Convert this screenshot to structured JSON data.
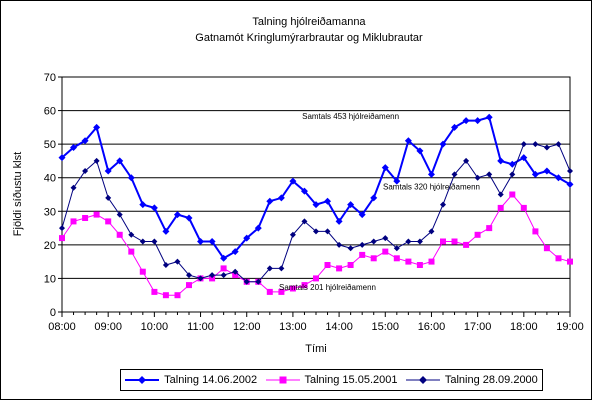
{
  "chart_data": {
    "type": "line",
    "title": "Talning hjólreiðamanna",
    "subtitle": "Gatnamót Kringlumýrarbrautar og Miklubrautar",
    "xlabel": "Tími",
    "ylabel": "Fjöldi síðustu klst",
    "ylim": [
      0,
      70
    ],
    "yticks": [
      "0",
      "10",
      "20",
      "30",
      "40",
      "50",
      "60",
      "70"
    ],
    "xticks": [
      "08:00",
      "09:00",
      "10:00",
      "11:00",
      "12:00",
      "13:00",
      "14:00",
      "15:00",
      "16:00",
      "17:00",
      "18:00",
      "19:00"
    ],
    "grid": "horizontal",
    "legend_position": "bottom",
    "series": [
      {
        "name": "Talning 14.06.2002",
        "color": "#0000FF",
        "marker": "diamond",
        "values": [
          46,
          49,
          51,
          55,
          42,
          45,
          40,
          32,
          31,
          24,
          29,
          28,
          21,
          21,
          16,
          18,
          22,
          25,
          33,
          34,
          39,
          36,
          32,
          33,
          27,
          32,
          29,
          34,
          43,
          39,
          51,
          48,
          41,
          50,
          55,
          57,
          57,
          58,
          45,
          44,
          46,
          41,
          42,
          40,
          38
        ]
      },
      {
        "name": "Talning 15.05.2001",
        "color": "#FF00FF",
        "marker": "square",
        "values": [
          22,
          27,
          28,
          29,
          27,
          23,
          18,
          12,
          6,
          5,
          5,
          8,
          10,
          10,
          13,
          11,
          9,
          9,
          6,
          6,
          7,
          8,
          10,
          14,
          13,
          14,
          17,
          16,
          18,
          16,
          15,
          14,
          15,
          21,
          21,
          20,
          23,
          25,
          31,
          35,
          31,
          24,
          19,
          16,
          15
        ]
      },
      {
        "name": "Talning 28.09.2000",
        "color": "#000080",
        "marker": "diamond",
        "values": [
          25,
          37,
          42,
          45,
          34,
          29,
          23,
          21,
          21,
          14,
          15,
          11,
          10,
          11,
          11,
          12,
          9,
          9,
          13,
          13,
          23,
          27,
          24,
          24,
          20,
          19,
          20,
          21,
          22,
          19,
          21,
          21,
          24,
          32,
          41,
          45,
          40,
          41,
          35,
          41,
          50,
          50,
          49,
          50,
          42
        ]
      }
    ],
    "annotations": [
      {
        "text": "Samtals 453 hjólreiðamenn",
        "x": "14:15",
        "y": 57.5
      },
      {
        "text": "Samtals 320 hjólreiðamenn",
        "x": "16:00",
        "y": 36.5
      },
      {
        "text": "Samtals 201 hjólreiðamenn",
        "x": "13:45",
        "y": 6.5
      }
    ]
  }
}
